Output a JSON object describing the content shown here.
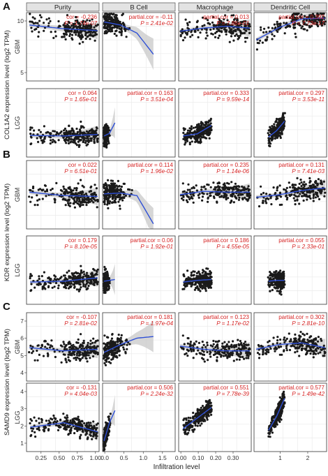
{
  "figure": {
    "x_axis_title": "Infiltration level",
    "columns": [
      "Purity",
      "B Cell",
      "Macrophage",
      "Dendritic Cell"
    ],
    "column_x_ticks": [
      [
        "0.25",
        "0.50",
        "0.75",
        "1.00"
      ],
      [
        "0.0",
        "0.5",
        "1.0",
        "1.5"
      ],
      [
        "0.00",
        "0.10",
        "0.20",
        "0.30"
      ],
      [
        "1",
        "2"
      ]
    ],
    "colors": {
      "point": "#1a1a1a",
      "loess_line": "#2e4fd6",
      "confidence_band": "#c8c8c8",
      "annotation": "#d62222",
      "strip_bg": "#e3e3e3",
      "panel_border": "#333333",
      "gridline": "#ebebeb"
    }
  },
  "panels": [
    {
      "label": "A",
      "ylabel": "COL1A2 expression level (log2 TPM)",
      "rows": [
        {
          "cancer": "GBM",
          "y_ticks": [
            "10",
            "5"
          ],
          "cells": [
            {
              "k": "cor = -0.236",
              "p": "P = 1.74e-07"
            },
            {
              "k": "partial.cor = -0.11",
              "p": "P = 2.41e-02"
            },
            {
              "k": "partial.cor = 0.013",
              "p": "P = 7.86e-01"
            },
            {
              "k": "partial.cor = 0.392",
              "p": "P = 7.73e-17"
            }
          ]
        },
        {
          "cancer": "LGG",
          "y_ticks": [],
          "cells": [
            {
              "k": "cor = 0.064",
              "p": "P = 1.65e-01"
            },
            {
              "k": "partial.cor = 0.163",
              "p": "P = 3.51e-04"
            },
            {
              "k": "partial.cor = 0.333",
              "p": "P = 9.59e-14"
            },
            {
              "k": "partial.cor = 0.297",
              "p": "P = 3.53e-11"
            }
          ]
        }
      ]
    },
    {
      "label": "B",
      "ylabel": "KDR expression level (log2 TPM)",
      "rows": [
        {
          "cancer": "GBM",
          "y_ticks": [],
          "cells": [
            {
              "k": "cor = 0.022",
              "p": "P = 6.51e-01"
            },
            {
              "k": "partial.cor = 0.114",
              "p": "P = 1.96e-02"
            },
            {
              "k": "partial.cor = 0.235",
              "p": "P = 1.14e-06"
            },
            {
              "k": "partial.cor = 0.131",
              "p": "P = 7.41e-03"
            }
          ]
        },
        {
          "cancer": "LGG",
          "y_ticks": [],
          "cells": [
            {
              "k": "cor = 0.179",
              "p": "P = 8.10e-05"
            },
            {
              "k": "partial.cor = 0.06",
              "p": "P = 1.92e-01"
            },
            {
              "k": "partial.cor = 0.186",
              "p": "P = 4.55e-05"
            },
            {
              "k": "partial.cor = 0.055",
              "p": "P = 2.33e-01"
            }
          ]
        }
      ]
    },
    {
      "label": "C",
      "ylabel": "SAMD9 expression level (log2 TPM)",
      "rows": [
        {
          "cancer": "GBM",
          "y_ticks": [
            "7",
            "6",
            "5",
            "4"
          ],
          "cells": [
            {
              "k": "cor = -0.107",
              "p": "P = 2.81e-02"
            },
            {
              "k": "partial.cor = 0.181",
              "p": "P = 1.97e-04"
            },
            {
              "k": "partial.cor = 0.123",
              "p": "P = 1.17e-02"
            },
            {
              "k": "partial.cor = 0.302",
              "p": "P = 2.81e-10"
            }
          ]
        },
        {
          "cancer": "LGG",
          "y_ticks": [
            "4",
            "3",
            "2",
            "1"
          ],
          "cells": [
            {
              "k": "cor = -0.131",
              "p": "P = 4.04e-03"
            },
            {
              "k": "partial.cor = 0.506",
              "p": "P = 2.24e-32"
            },
            {
              "k": "partial.cor = 0.551",
              "p": "P = 7.78e-39"
            },
            {
              "k": "partial.cor = 0.577",
              "p": "P = 1.49e-42"
            }
          ]
        }
      ]
    }
  ],
  "chart_data": {
    "type": "scatter",
    "title": "",
    "xlabel": "Infiltration level",
    "facets": {
      "columns": [
        "Purity",
        "B Cell",
        "Macrophage",
        "Dendritic Cell"
      ],
      "genes": [
        "COL1A2",
        "KDR",
        "SAMD9"
      ],
      "cancers": [
        "GBM",
        "LGG"
      ]
    },
    "xlim": [
      [
        0.05,
        1.05
      ],
      [
        -0.05,
        2.0
      ],
      [
        -0.01,
        0.4
      ],
      [
        0.05,
        2.7
      ]
    ],
    "series": [
      {
        "gene": "COL1A2",
        "cancer": "GBM",
        "ylim": [
          2,
          13
        ],
        "trend": [
          [
            11.0,
            10.4,
            10.1
          ],
          [
            11.5,
            11.0,
            9.7,
            6.3
          ],
          [
            10.0,
            10.5,
            10.8,
            10.5
          ],
          [
            8.6,
            10.6,
            12.0,
            12.1
          ]
        ]
      },
      {
        "gene": "COL1A2",
        "cancer": "LGG",
        "ylim": [
          0,
          13
        ],
        "trend": [
          [
            4.1,
            4.0,
            4.3
          ],
          [
            4.0,
            4.5,
            6.5
          ],
          [
            4.0,
            4.4,
            6.0
          ],
          [
            3.8,
            5.0,
            6.8
          ]
        ]
      },
      {
        "gene": "KDR",
        "cancer": "GBM",
        "ylim": [
          2,
          10
        ],
        "trend": [
          [
            6.3,
            5.9,
            5.8
          ],
          [
            6.1,
            6.2,
            5.9,
            2.6
          ],
          [
            6.0,
            6.4,
            6.3,
            6.3
          ],
          [
            5.7,
            6.0,
            6.5,
            6.8
          ]
        ]
      },
      {
        "gene": "KDR",
        "cancer": "LGG",
        "ylim": [
          0,
          8
        ],
        "trend": [
          [
            2.6,
            2.7,
            3.1
          ],
          [
            2.7,
            2.8,
            2.9
          ],
          [
            2.6,
            2.8,
            2.9
          ],
          [
            2.7,
            2.8,
            2.8
          ]
        ]
      },
      {
        "gene": "SAMD9",
        "cancer": "GBM",
        "ylim": [
          3.5,
          7.8
        ],
        "trend": [
          [
            5.6,
            5.4,
            5.5
          ],
          [
            5.3,
            5.8,
            6.2,
            6.3
          ],
          [
            5.7,
            5.5,
            5.4,
            5.4
          ],
          [
            5.5,
            5.8,
            5.9,
            5.6
          ]
        ]
      },
      {
        "gene": "SAMD9",
        "cancer": "LGG",
        "ylim": [
          0.3,
          4.8
        ],
        "trend": [
          [
            1.9,
            2.2,
            1.6
          ],
          [
            1.0,
            2.2,
            3.0
          ],
          [
            1.8,
            2.5,
            3.2
          ],
          [
            1.7,
            2.6,
            3.8
          ]
        ]
      }
    ]
  }
}
